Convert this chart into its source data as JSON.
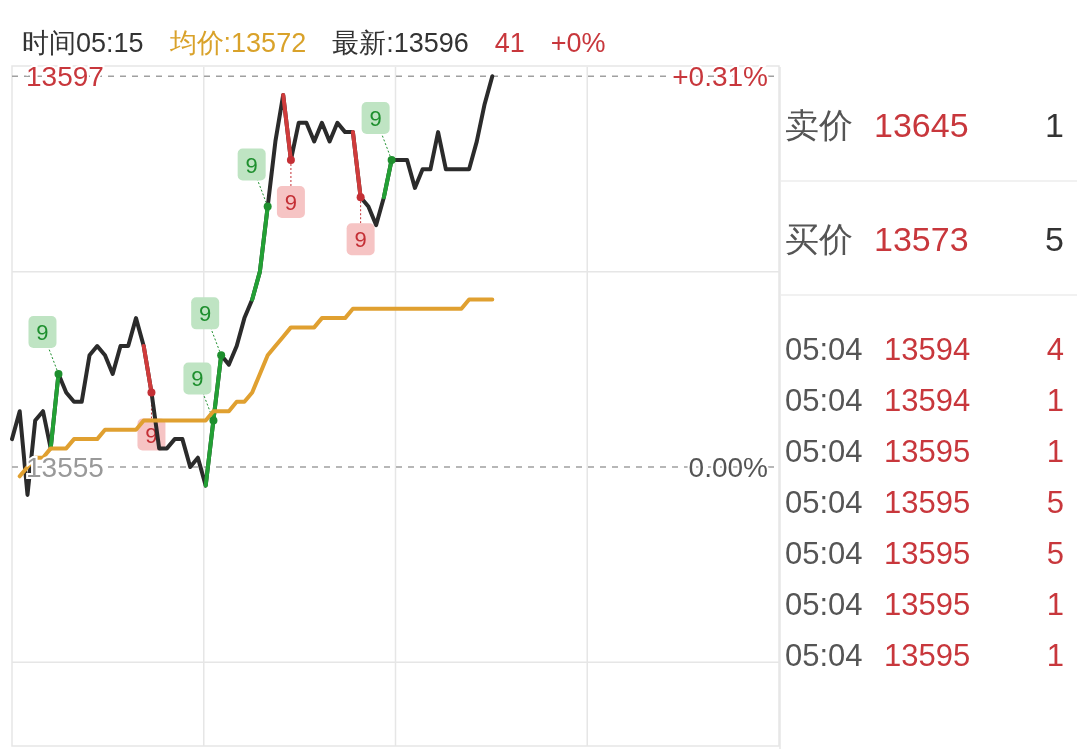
{
  "chart_data": [
    {
      "type": "line",
      "annotations": [
        "时间05:15",
        "均价:13572",
        "最新:13596",
        "41",
        "+0%"
      ],
      "categories": [
        null,
        null,
        null,
        null,
        null,
        null,
        null,
        null,
        null,
        null,
        null,
        null,
        null,
        null,
        null,
        null,
        null,
        null,
        null,
        null,
        null,
        null,
        null,
        null,
        null,
        null,
        null,
        null,
        null,
        null,
        null,
        null,
        null,
        null,
        null,
        null,
        null,
        null,
        null,
        null,
        null,
        null,
        null,
        null,
        null,
        null,
        null,
        null,
        null,
        null,
        null,
        null,
        null,
        null,
        null,
        null,
        null,
        null,
        null,
        null,
        null,
        null,
        null,
        null,
        null,
        null,
        null,
        null,
        null,
        null,
        null,
        null,
        null,
        null,
        null,
        null,
        null,
        null,
        null,
        null,
        null,
        null,
        null,
        null,
        null,
        null,
        null,
        null,
        null,
        null,
        null,
        null,
        null,
        null,
        null,
        null,
        null,
        null,
        null,
        null
      ],
      "ylim": [
        13525,
        13598
      ],
      "yticks": [
        {
          "value": 13534,
          "label": null
        },
        {
          "value": 13555,
          "label": "13555"
        },
        {
          "value": 13576,
          "label": null
        },
        {
          "value": 13597,
          "label": "13597"
        }
      ],
      "y2lim": [
        -0.221,
        0.317
      ],
      "y2ticks": [
        {
          "value": 0,
          "label": "0.00%"
        },
        {
          "value": 0.31,
          "label": "+0.31%"
        }
      ],
      "grid": true,
      "series": [
        {
          "color": "#2b2b2b",
          "values": [
            13558,
            13561,
            13552,
            13560,
            13561,
            13557,
            13565,
            13563,
            13562,
            13562,
            13567,
            13568,
            13567,
            13565,
            13568,
            13568,
            13571,
            13568,
            13563,
            13557,
            13557,
            13558,
            13558,
            13555,
            13556,
            13553,
            13560,
            13567,
            13566,
            13568,
            13571,
            13573,
            13576,
            13583,
            13590,
            13595,
            13588,
            13592,
            13592,
            13590,
            13592,
            13590,
            13592,
            13591,
            13591,
            13584,
            13583,
            13581,
            13584,
            13588,
            13588,
            13588,
            13585,
            13587,
            13587,
            13591,
            13587,
            13587,
            13587,
            13587,
            13590,
            13594,
            13597,
            null,
            null,
            null,
            null,
            null,
            null,
            null,
            null,
            null,
            null,
            null,
            null,
            null,
            null,
            null,
            null,
            null,
            null,
            null,
            null,
            null,
            null,
            null,
            null,
            null,
            null,
            null,
            null,
            null,
            null,
            null,
            null,
            null,
            null,
            null,
            null,
            null
          ]
        },
        {
          "color": "#23a035",
          "values": [
            null,
            null,
            null,
            null,
            null,
            13557,
            13565,
            null,
            null,
            null,
            null,
            null,
            null,
            null,
            null,
            null,
            null,
            null,
            null,
            null,
            null,
            null,
            null,
            null,
            null,
            13553,
            13560,
            13567,
            null,
            null,
            null,
            13573,
            13576,
            13583,
            null,
            null,
            null,
            null,
            null,
            null,
            null,
            null,
            null,
            null,
            null,
            null,
            null,
            null,
            13584,
            13588,
            null,
            null,
            null,
            null,
            null,
            null,
            null,
            null,
            null,
            null,
            null,
            null,
            null,
            null,
            null,
            null,
            null,
            null,
            null,
            null,
            null,
            null,
            null,
            null,
            null,
            null,
            null,
            null,
            null,
            null,
            null,
            null,
            null,
            null,
            null,
            null,
            null,
            null,
            null,
            null,
            null,
            null,
            null,
            null,
            null,
            null,
            null,
            null,
            null,
            null
          ]
        },
        {
          "color": "#d03b3b",
          "values": [
            null,
            null,
            null,
            null,
            null,
            null,
            null,
            null,
            null,
            null,
            null,
            null,
            null,
            null,
            null,
            null,
            null,
            13568,
            13563,
            null,
            null,
            null,
            null,
            null,
            null,
            null,
            null,
            null,
            null,
            null,
            null,
            null,
            null,
            null,
            null,
            13595,
            13588,
            null,
            null,
            null,
            null,
            null,
            null,
            null,
            13591,
            13584,
            null,
            null,
            null,
            null,
            null,
            null,
            null,
            null,
            null,
            null,
            null,
            null,
            null,
            null,
            null,
            null,
            null,
            null,
            null,
            null,
            null,
            null,
            null,
            null,
            null,
            null,
            null,
            null,
            null,
            null,
            null,
            null,
            null,
            null,
            null,
            null,
            null,
            null,
            null,
            null,
            null,
            null,
            null,
            null,
            null,
            null,
            null,
            null,
            null,
            null,
            null,
            null,
            null,
            null
          ]
        },
        {
          "color": "#e0a030",
          "values": [
            null,
            13554,
            13555,
            13556,
            13556,
            13557,
            13557,
            13557,
            13558,
            13558,
            13558,
            13558,
            13559,
            13559,
            13559,
            13559,
            13559,
            13560,
            13560,
            13560,
            13560,
            13560,
            13560,
            13560,
            13560,
            13560,
            13561,
            13561,
            13561,
            13562,
            13562,
            13563,
            13565,
            13567,
            13568,
            13569,
            13570,
            13570,
            13570,
            13570,
            13571,
            13571,
            13571,
            13571,
            13572,
            13572,
            13572,
            13572,
            13572,
            13572,
            13572,
            13572,
            13572,
            13572,
            13572,
            13572,
            13572,
            13572,
            13572,
            13573,
            13573,
            13573,
            13573,
            null,
            null,
            null,
            null,
            null,
            null,
            null,
            null,
            null,
            null,
            null,
            null,
            null,
            null,
            null,
            null,
            null,
            null,
            null,
            null,
            null,
            null,
            null,
            null,
            null,
            null,
            null,
            null,
            null,
            null,
            null,
            null,
            null,
            null,
            null,
            null,
            null
          ]
        },
        {
          "type": "scatter",
          "name": "9",
          "marker": "circle",
          "color": "#1e8f2e",
          "values": [
            null,
            null,
            null,
            null,
            null,
            null,
            13565,
            null,
            null,
            null,
            null,
            null,
            null,
            null,
            null,
            null,
            null,
            null,
            null,
            null,
            null,
            null,
            null,
            null,
            null,
            null,
            13560,
            13567,
            null,
            null,
            null,
            null,
            null,
            13583,
            null,
            null,
            null,
            null,
            null,
            null,
            null,
            null,
            null,
            null,
            null,
            null,
            null,
            null,
            null,
            13588,
            null,
            null,
            null,
            null,
            null,
            null,
            null,
            null,
            null,
            null,
            null,
            null,
            null,
            null,
            null,
            null,
            null,
            null,
            null,
            null,
            null,
            null,
            null,
            null,
            null,
            null,
            null,
            null,
            null,
            null,
            null,
            null,
            null,
            null,
            null,
            null,
            null,
            null,
            null,
            null,
            null,
            null,
            null,
            null,
            null,
            null,
            null,
            null,
            null,
            null
          ]
        },
        {
          "type": "scatter",
          "name": "9",
          "marker": "circle",
          "color": "#c42f35",
          "values": [
            null,
            null,
            null,
            null,
            null,
            null,
            null,
            null,
            null,
            null,
            null,
            null,
            null,
            null,
            null,
            null,
            null,
            null,
            13563,
            null,
            null,
            null,
            null,
            null,
            null,
            null,
            null,
            null,
            null,
            null,
            null,
            null,
            null,
            null,
            null,
            null,
            13588,
            null,
            null,
            null,
            null,
            null,
            null,
            null,
            null,
            13584,
            null,
            null,
            null,
            null,
            null,
            null,
            null,
            null,
            null,
            null,
            null,
            null,
            null,
            null,
            null,
            null,
            null,
            null,
            null,
            null,
            null,
            null,
            null,
            null,
            null,
            null,
            null,
            null,
            null,
            null,
            null,
            null,
            null,
            null,
            null,
            null,
            null,
            null,
            null,
            null,
            null,
            null,
            null,
            null,
            null,
            null,
            null,
            null,
            null,
            null,
            null,
            null,
            null,
            null
          ]
        }
      ]
    },
    {
      "type": "other",
      "annotations": [
        "卖价",
        "13645",
        "1",
        "买价",
        "13573",
        "5",
        "05:04",
        "13594",
        "4",
        "05:04",
        "13594",
        "1",
        "05:04",
        "13595",
        "1",
        "05:04",
        "13595",
        "5",
        "05:04",
        "13595",
        "5",
        "05:04",
        "13595",
        "1",
        "05:04",
        "13595",
        "1"
      ]
    }
  ]
}
